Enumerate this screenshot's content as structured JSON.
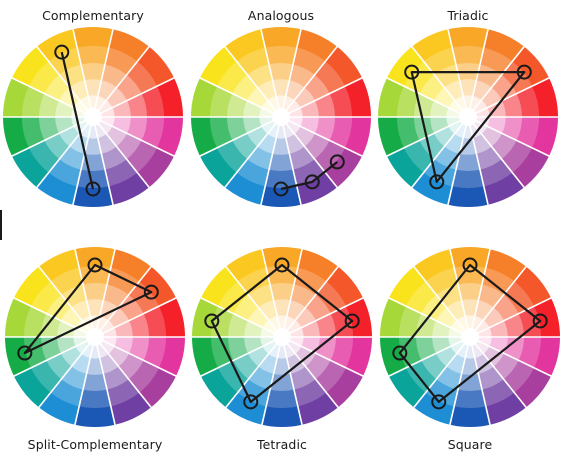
{
  "colors": {
    "hues": [
      "#f4202a",
      "#f4582a",
      "#f6802a",
      "#f9a727",
      "#fbc822",
      "#f9e31c",
      "#a7d839",
      "#15ac47",
      "#0aa49a",
      "#1e8ed4",
      "#1b57b4",
      "#6f3fa3",
      "#a83f9e",
      "#e2359d"
    ],
    "line": "#1a1a1a",
    "divider": "#ffffff"
  },
  "wheels": [
    {
      "title": "Complementary",
      "points": [
        4,
        10
      ],
      "closed": false
    },
    {
      "title": "Analogous",
      "points": [
        10,
        11,
        12
      ],
      "closed": false
    },
    {
      "title": "Triadic",
      "points": [
        1,
        5,
        9
      ],
      "closed": true
    },
    {
      "title": "Split-Complementary",
      "points": [
        1,
        3,
        7
      ],
      "closed": true
    },
    {
      "title": "Tetradic",
      "points": [
        0,
        3,
        6,
        9
      ],
      "closed": true
    },
    {
      "title": "Square",
      "points": [
        0,
        3,
        7,
        9
      ],
      "closed": true
    }
  ]
}
